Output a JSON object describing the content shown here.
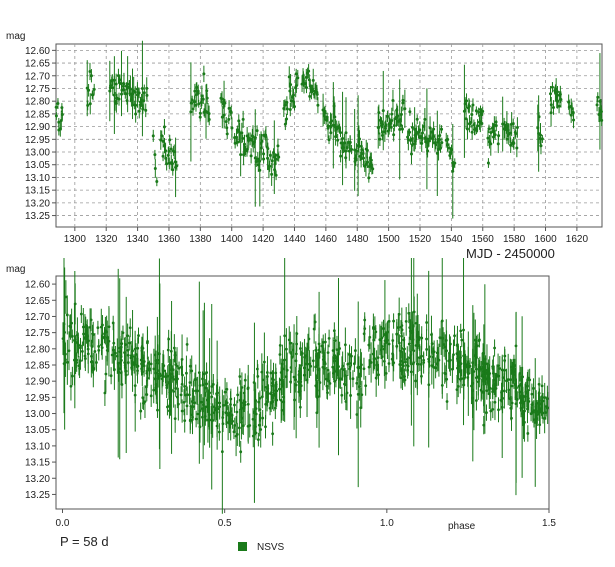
{
  "chart_data": [
    {
      "type": "scatter",
      "ylabel": "mag",
      "xlabel": "MJD - 2450000",
      "xlim": [
        1288,
        1636
      ],
      "ylim": [
        13.295,
        12.575
      ],
      "y_inverted": true,
      "grid": true,
      "x_ticks": [
        1300,
        1320,
        1340,
        1360,
        1380,
        1400,
        1420,
        1440,
        1460,
        1480,
        1500,
        1520,
        1540,
        1560,
        1580,
        1600,
        1620
      ],
      "y_ticks": [
        12.6,
        12.65,
        12.7,
        12.75,
        12.8,
        12.85,
        12.9,
        12.95,
        13.0,
        13.05,
        13.1,
        13.15,
        13.2,
        13.25
      ],
      "y_tick_labels": [
        "12.60",
        "12.65",
        "12.70",
        "12.75",
        "12.80",
        "12.85",
        "12.90",
        "12.95",
        "13.00",
        "13.05",
        "13.10",
        "13.15",
        "13.20",
        "13.25"
      ],
      "error_bars": true,
      "color": "#1a7a1a",
      "series": [
        {
          "segments": [
            {
              "x": [
                1288,
                1292
              ],
              "y": [
                12.86,
                12.88
              ]
            },
            {
              "x": [
                1308,
                1312
              ],
              "y": [
                12.79,
                12.75
              ]
            },
            {
              "x": [
                1322,
                1346
              ],
              "y": [
                12.74,
                12.8
              ]
            },
            {
              "x": [
                1350,
                1352
              ],
              "y": [
                12.98,
                13.05
              ]
            },
            {
              "x": [
                1355,
                1365
              ],
              "y": [
                12.96,
                13.05
              ]
            },
            {
              "x": [
                1374,
                1386
              ],
              "y": [
                12.8,
                12.82
              ]
            },
            {
              "x": [
                1393,
                1400
              ],
              "y": [
                12.86,
                12.9
              ]
            },
            {
              "x": [
                1402,
                1430
              ],
              "y": [
                12.94,
                13.03
              ]
            },
            {
              "x": [
                1433,
                1442
              ],
              "y": [
                12.82,
                12.75
              ]
            },
            {
              "x": [
                1445,
                1455
              ],
              "y": [
                12.7,
                12.78
              ]
            },
            {
              "x": [
                1458,
                1476
              ],
              "y": [
                12.85,
                12.97
              ]
            },
            {
              "x": [
                1478,
                1490
              ],
              "y": [
                13.0,
                13.05
              ]
            },
            {
              "x": [
                1493,
                1510
              ],
              "y": [
                12.9,
                12.85
              ]
            },
            {
              "x": [
                1512,
                1534
              ],
              "y": [
                12.92,
                12.96
              ]
            },
            {
              "x": [
                1537,
                1542
              ],
              "y": [
                12.96,
                13.05
              ]
            },
            {
              "x": [
                1548,
                1560
              ],
              "y": [
                12.85,
                12.88
              ]
            },
            {
              "x": [
                1563,
                1570
              ],
              "y": [
                12.95,
                12.9
              ]
            },
            {
              "x": [
                1573,
                1582
              ],
              "y": [
                12.88,
                12.95
              ]
            },
            {
              "x": [
                1595,
                1598
              ],
              "y": [
                12.9,
                13.0
              ]
            },
            {
              "x": [
                1603,
                1610
              ],
              "y": [
                12.82,
                12.78
              ]
            },
            {
              "x": [
                1615,
                1618
              ],
              "y": [
                12.8,
                12.85
              ]
            },
            {
              "x": [
                1633,
                1636
              ],
              "y": [
                12.8,
                12.85
              ]
            }
          ]
        }
      ]
    },
    {
      "type": "scatter",
      "ylabel": "mag",
      "xlabel": "phase",
      "xlim": [
        -0.02,
        1.5
      ],
      "ylim": [
        13.295,
        12.575
      ],
      "y_inverted": true,
      "grid": false,
      "x_ticks": [
        0.0,
        0.5,
        1.0,
        1.5
      ],
      "x_tick_labels": [
        "0.0",
        "0.5",
        "1.0",
        "1.5"
      ],
      "y_ticks": [
        12.6,
        12.65,
        12.7,
        12.75,
        12.8,
        12.85,
        12.9,
        12.95,
        13.0,
        13.05,
        13.1,
        13.15,
        13.2,
        13.25
      ],
      "y_tick_labels": [
        "12.60",
        "12.65",
        "12.70",
        "12.75",
        "12.80",
        "12.85",
        "12.90",
        "12.95",
        "13.00",
        "13.05",
        "13.10",
        "13.15",
        "13.20",
        "13.25"
      ],
      "period_label": "P = 58 d",
      "legend": {
        "label": "NSVS",
        "placement": "bottom-center"
      },
      "error_bars": true,
      "color": "#1a7a1a",
      "phase_curve": {
        "phase": [
          0.0,
          0.1,
          0.2,
          0.3,
          0.4,
          0.5,
          0.6,
          0.7,
          0.8,
          0.9,
          1.0,
          1.1,
          1.2,
          1.3,
          1.4,
          1.5
        ],
        "mag": [
          12.78,
          12.8,
          12.83,
          12.88,
          12.93,
          12.99,
          12.97,
          12.88,
          12.84,
          12.86,
          12.78,
          12.8,
          12.83,
          12.88,
          12.93,
          12.99
        ]
      }
    }
  ]
}
